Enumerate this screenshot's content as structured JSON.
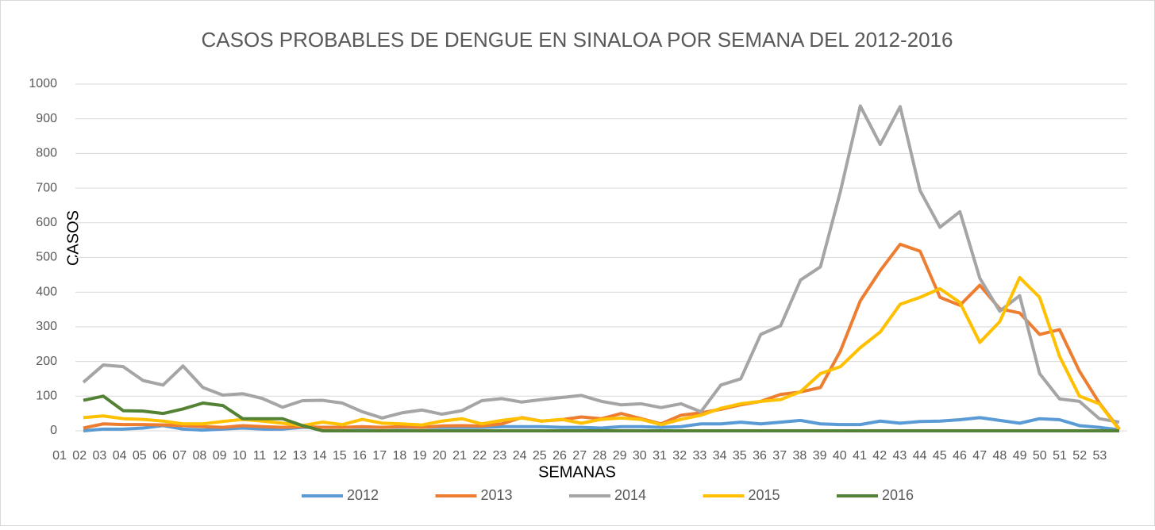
{
  "chart_data": {
    "type": "line",
    "title": "CASOS PROBABLES DE DENGUE EN SINALOA POR SEMANA DEL 2012-2016",
    "x_label": "SEMANAS",
    "y_label": "CASOS",
    "categories": [
      "01",
      "02",
      "03",
      "04",
      "05",
      "06",
      "07",
      "08",
      "09",
      "10",
      "11",
      "12",
      "13",
      "14",
      "15",
      "16",
      "17",
      "18",
      "19",
      "20",
      "21",
      "22",
      "23",
      "24",
      "25",
      "26",
      "27",
      "28",
      "29",
      "30",
      "31",
      "32",
      "33",
      "34",
      "35",
      "36",
      "37",
      "38",
      "39",
      "40",
      "41",
      "42",
      "43",
      "44",
      "45",
      "46",
      "47",
      "48",
      "49",
      "50",
      "51",
      "52",
      "53"
    ],
    "ylim": [
      0,
      1000
    ],
    "yticks": [
      0,
      100,
      200,
      300,
      400,
      500,
      600,
      700,
      800,
      900,
      1000
    ],
    "grid": true,
    "legend": "bottom",
    "series": [
      {
        "name": "2012",
        "color": "#5b9bd5",
        "values": [
          0,
          5,
          5,
          8,
          15,
          5,
          2,
          5,
          8,
          5,
          5,
          10,
          10,
          10,
          10,
          10,
          10,
          10,
          10,
          10,
          10,
          12,
          12,
          12,
          10,
          10,
          8,
          12,
          12,
          10,
          12,
          20,
          20,
          25,
          20,
          25,
          30,
          20,
          18,
          18,
          28,
          22,
          27,
          28,
          32,
          38,
          30,
          22,
          35,
          32,
          15,
          10,
          3
        ]
      },
      {
        "name": "2013",
        "color": "#ed7d31",
        "values": [
          8,
          20,
          18,
          18,
          17,
          15,
          12,
          10,
          15,
          12,
          10,
          12,
          10,
          10,
          12,
          10,
          12,
          10,
          14,
          15,
          14,
          20,
          38,
          28,
          32,
          40,
          35,
          50,
          35,
          20,
          45,
          52,
          62,
          75,
          85,
          105,
          112,
          125,
          230,
          375,
          462,
          538,
          518,
          385,
          362,
          420,
          352,
          340,
          278,
          292,
          172,
          80,
          5
        ]
      },
      {
        "name": "2014",
        "color": "#a5a5a5",
        "values": [
          140,
          190,
          185,
          145,
          132,
          187,
          125,
          103,
          107,
          93,
          68,
          87,
          88,
          80,
          55,
          37,
          52,
          60,
          48,
          58,
          87,
          93,
          83,
          90,
          96,
          102,
          85,
          75,
          78,
          67,
          78,
          55,
          132,
          150,
          278,
          303,
          435,
          473,
          690,
          937,
          826,
          935,
          693,
          587,
          632,
          440,
          345,
          390,
          165,
          92,
          85,
          35,
          25
        ]
      },
      {
        "name": "2015",
        "color": "#ffc000",
        "values": [
          38,
          43,
          35,
          33,
          28,
          20,
          20,
          27,
          33,
          28,
          22,
          15,
          25,
          18,
          33,
          22,
          20,
          17,
          28,
          35,
          20,
          30,
          37,
          28,
          33,
          22,
          33,
          37,
          33,
          18,
          33,
          45,
          65,
          78,
          85,
          90,
          113,
          165,
          185,
          240,
          285,
          365,
          385,
          410,
          370,
          255,
          315,
          442,
          385,
          215,
          100,
          78,
          3
        ]
      },
      {
        "name": "2016",
        "color": "#548235",
        "values": [
          88,
          100,
          58,
          57,
          50,
          63,
          80,
          73,
          35,
          35,
          35,
          15,
          0,
          0,
          0,
          0,
          0,
          0,
          0,
          0,
          0,
          0,
          0,
          0,
          0,
          0,
          0,
          0,
          0,
          0,
          0,
          0,
          0,
          0,
          0,
          0,
          0,
          0,
          0,
          0,
          0,
          0,
          0,
          0,
          0,
          0,
          0,
          0,
          0,
          0,
          0,
          0,
          0
        ]
      }
    ]
  }
}
